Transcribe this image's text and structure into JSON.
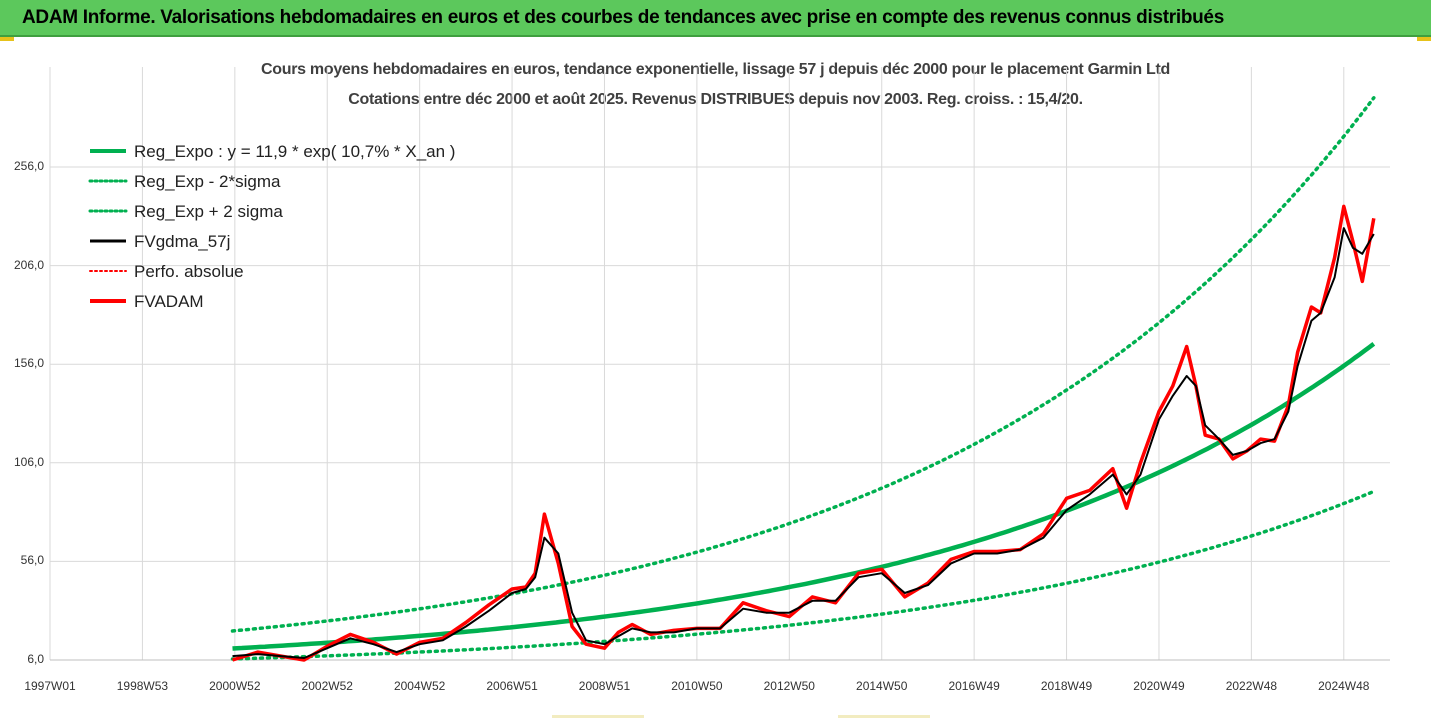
{
  "header": {
    "title": "ADAM Informe. Valorisations hebdomadaires en euros et des courbes de tendances avec prise en compte des revenus connus distribués"
  },
  "colors": {
    "header_bg": "#5cc85c",
    "reg": "#00b050",
    "ma": "#000000",
    "price": "#ff0000",
    "grid": "#d9d9d9"
  },
  "chart_data": {
    "type": "line",
    "title_line1": "Cours moyens hebdomadaires en euros, tendance exponentielle, lissage 57 j depuis déc 2000 pour le placement Garmin Ltd",
    "title_line2": "Cotations entre déc 2000 et août 2025. Revenus DISTRIBUES depuis nov 2003. Reg. croiss. : 15,4/20.",
    "x_ticks": [
      "1997W01",
      "1998W53",
      "2000W52",
      "2002W52",
      "2004W52",
      "2006W51",
      "2008W51",
      "2010W50",
      "2012W50",
      "2014W50",
      "2016W49",
      "2018W49",
      "2020W49",
      "2022W48",
      "2024W48"
    ],
    "x_tick_years": [
      1997.0,
      1999.0,
      2001.0,
      2003.0,
      2005.0,
      2007.0,
      2009.0,
      2011.0,
      2013.0,
      2015.0,
      2017.0,
      2019.0,
      2021.0,
      2023.0,
      2025.0
    ],
    "xlim": [
      1997.0,
      2026.0
    ],
    "y_ticks": [
      "6,0",
      "56,0",
      "106,0",
      "156,0",
      "206,0",
      "256,0"
    ],
    "y_tick_values": [
      6,
      56,
      106,
      156,
      206,
      256
    ],
    "ylim": [
      6,
      256
    ],
    "legend": [
      {
        "label": "Reg_Expo : y = 11,9 * exp( 10,7% *  X_an )",
        "style": "reg"
      },
      {
        "label": "Reg_Exp - 2*sigma",
        "style": "dotted-green"
      },
      {
        "label": "Reg_Exp + 2 sigma",
        "style": "dotted-green"
      },
      {
        "label": "FVgdma_57j",
        "style": "black"
      },
      {
        "label": "Perfo. absolue",
        "style": "dotted-red"
      },
      {
        "label": "FVADAM",
        "style": "red"
      }
    ],
    "regression": {
      "a": 11.9,
      "b": 0.107,
      "x0": 2001.0,
      "upper_factor": 1.75,
      "lower_factor": 0.55,
      "x_end": 2025.65
    },
    "series": [
      {
        "name": "FVADAM",
        "x": [
          2000.95,
          2001.5,
          2002.0,
          2002.5,
          2003.0,
          2003.5,
          2004.0,
          2004.5,
          2005.0,
          2005.5,
          2006.0,
          2006.5,
          2007.0,
          2007.3,
          2007.5,
          2007.7,
          2008.0,
          2008.3,
          2008.6,
          2009.0,
          2009.3,
          2009.6,
          2010.0,
          2010.5,
          2011.0,
          2011.5,
          2012.0,
          2012.5,
          2013.0,
          2013.5,
          2014.0,
          2014.5,
          2015.0,
          2015.5,
          2016.0,
          2016.5,
          2017.0,
          2017.5,
          2018.0,
          2018.5,
          2019.0,
          2019.5,
          2020.0,
          2020.3,
          2020.6,
          2021.0,
          2021.3,
          2021.6,
          2021.8,
          2022.0,
          2022.3,
          2022.6,
          2022.9,
          2023.2,
          2023.5,
          2023.8,
          2024.0,
          2024.3,
          2024.5,
          2024.8,
          2025.0,
          2025.2,
          2025.4,
          2025.65
        ],
        "y": [
          6,
          10,
          8,
          6,
          13,
          19,
          15,
          9,
          15,
          17,
          25,
          34,
          42,
          43,
          50,
          80,
          55,
          23,
          14,
          12,
          20,
          24,
          19,
          21,
          22,
          22,
          35,
          31,
          28,
          38,
          35,
          50,
          52,
          38,
          45,
          57,
          61,
          61,
          62,
          70,
          88,
          92,
          103,
          83,
          106,
          132,
          145,
          165,
          145,
          120,
          118,
          108,
          112,
          118,
          117,
          135,
          162,
          185,
          182,
          210,
          236,
          218,
          198,
          230
        ]
      },
      {
        "name": "FVgdma_57j",
        "x": [
          2000.95,
          2001.5,
          2002.0,
          2002.5,
          2003.0,
          2003.5,
          2004.0,
          2004.5,
          2005.0,
          2005.5,
          2006.0,
          2006.5,
          2007.0,
          2007.3,
          2007.5,
          2007.7,
          2008.0,
          2008.3,
          2008.6,
          2009.0,
          2009.3,
          2009.6,
          2010.0,
          2010.5,
          2011.0,
          2011.5,
          2012.0,
          2012.5,
          2013.0,
          2013.5,
          2014.0,
          2014.5,
          2015.0,
          2015.5,
          2016.0,
          2016.5,
          2017.0,
          2017.5,
          2018.0,
          2018.5,
          2019.0,
          2019.5,
          2020.0,
          2020.3,
          2020.6,
          2021.0,
          2021.3,
          2021.6,
          2021.8,
          2022.0,
          2022.3,
          2022.6,
          2022.9,
          2023.2,
          2023.5,
          2023.8,
          2024.0,
          2024.3,
          2024.5,
          2024.8,
          2025.0,
          2025.2,
          2025.4,
          2025.65
        ],
        "y": [
          8,
          9,
          8,
          7,
          12,
          17,
          14,
          10,
          14,
          16,
          23,
          31,
          40,
          42,
          48,
          68,
          60,
          30,
          16,
          14,
          18,
          22,
          20,
          20,
          22,
          22,
          32,
          30,
          30,
          36,
          36,
          48,
          50,
          40,
          44,
          55,
          60,
          60,
          62,
          68,
          82,
          90,
          100,
          90,
          100,
          128,
          140,
          150,
          145,
          125,
          118,
          110,
          112,
          116,
          118,
          132,
          155,
          178,
          182,
          200,
          225,
          215,
          212,
          222
        ]
      }
    ]
  }
}
